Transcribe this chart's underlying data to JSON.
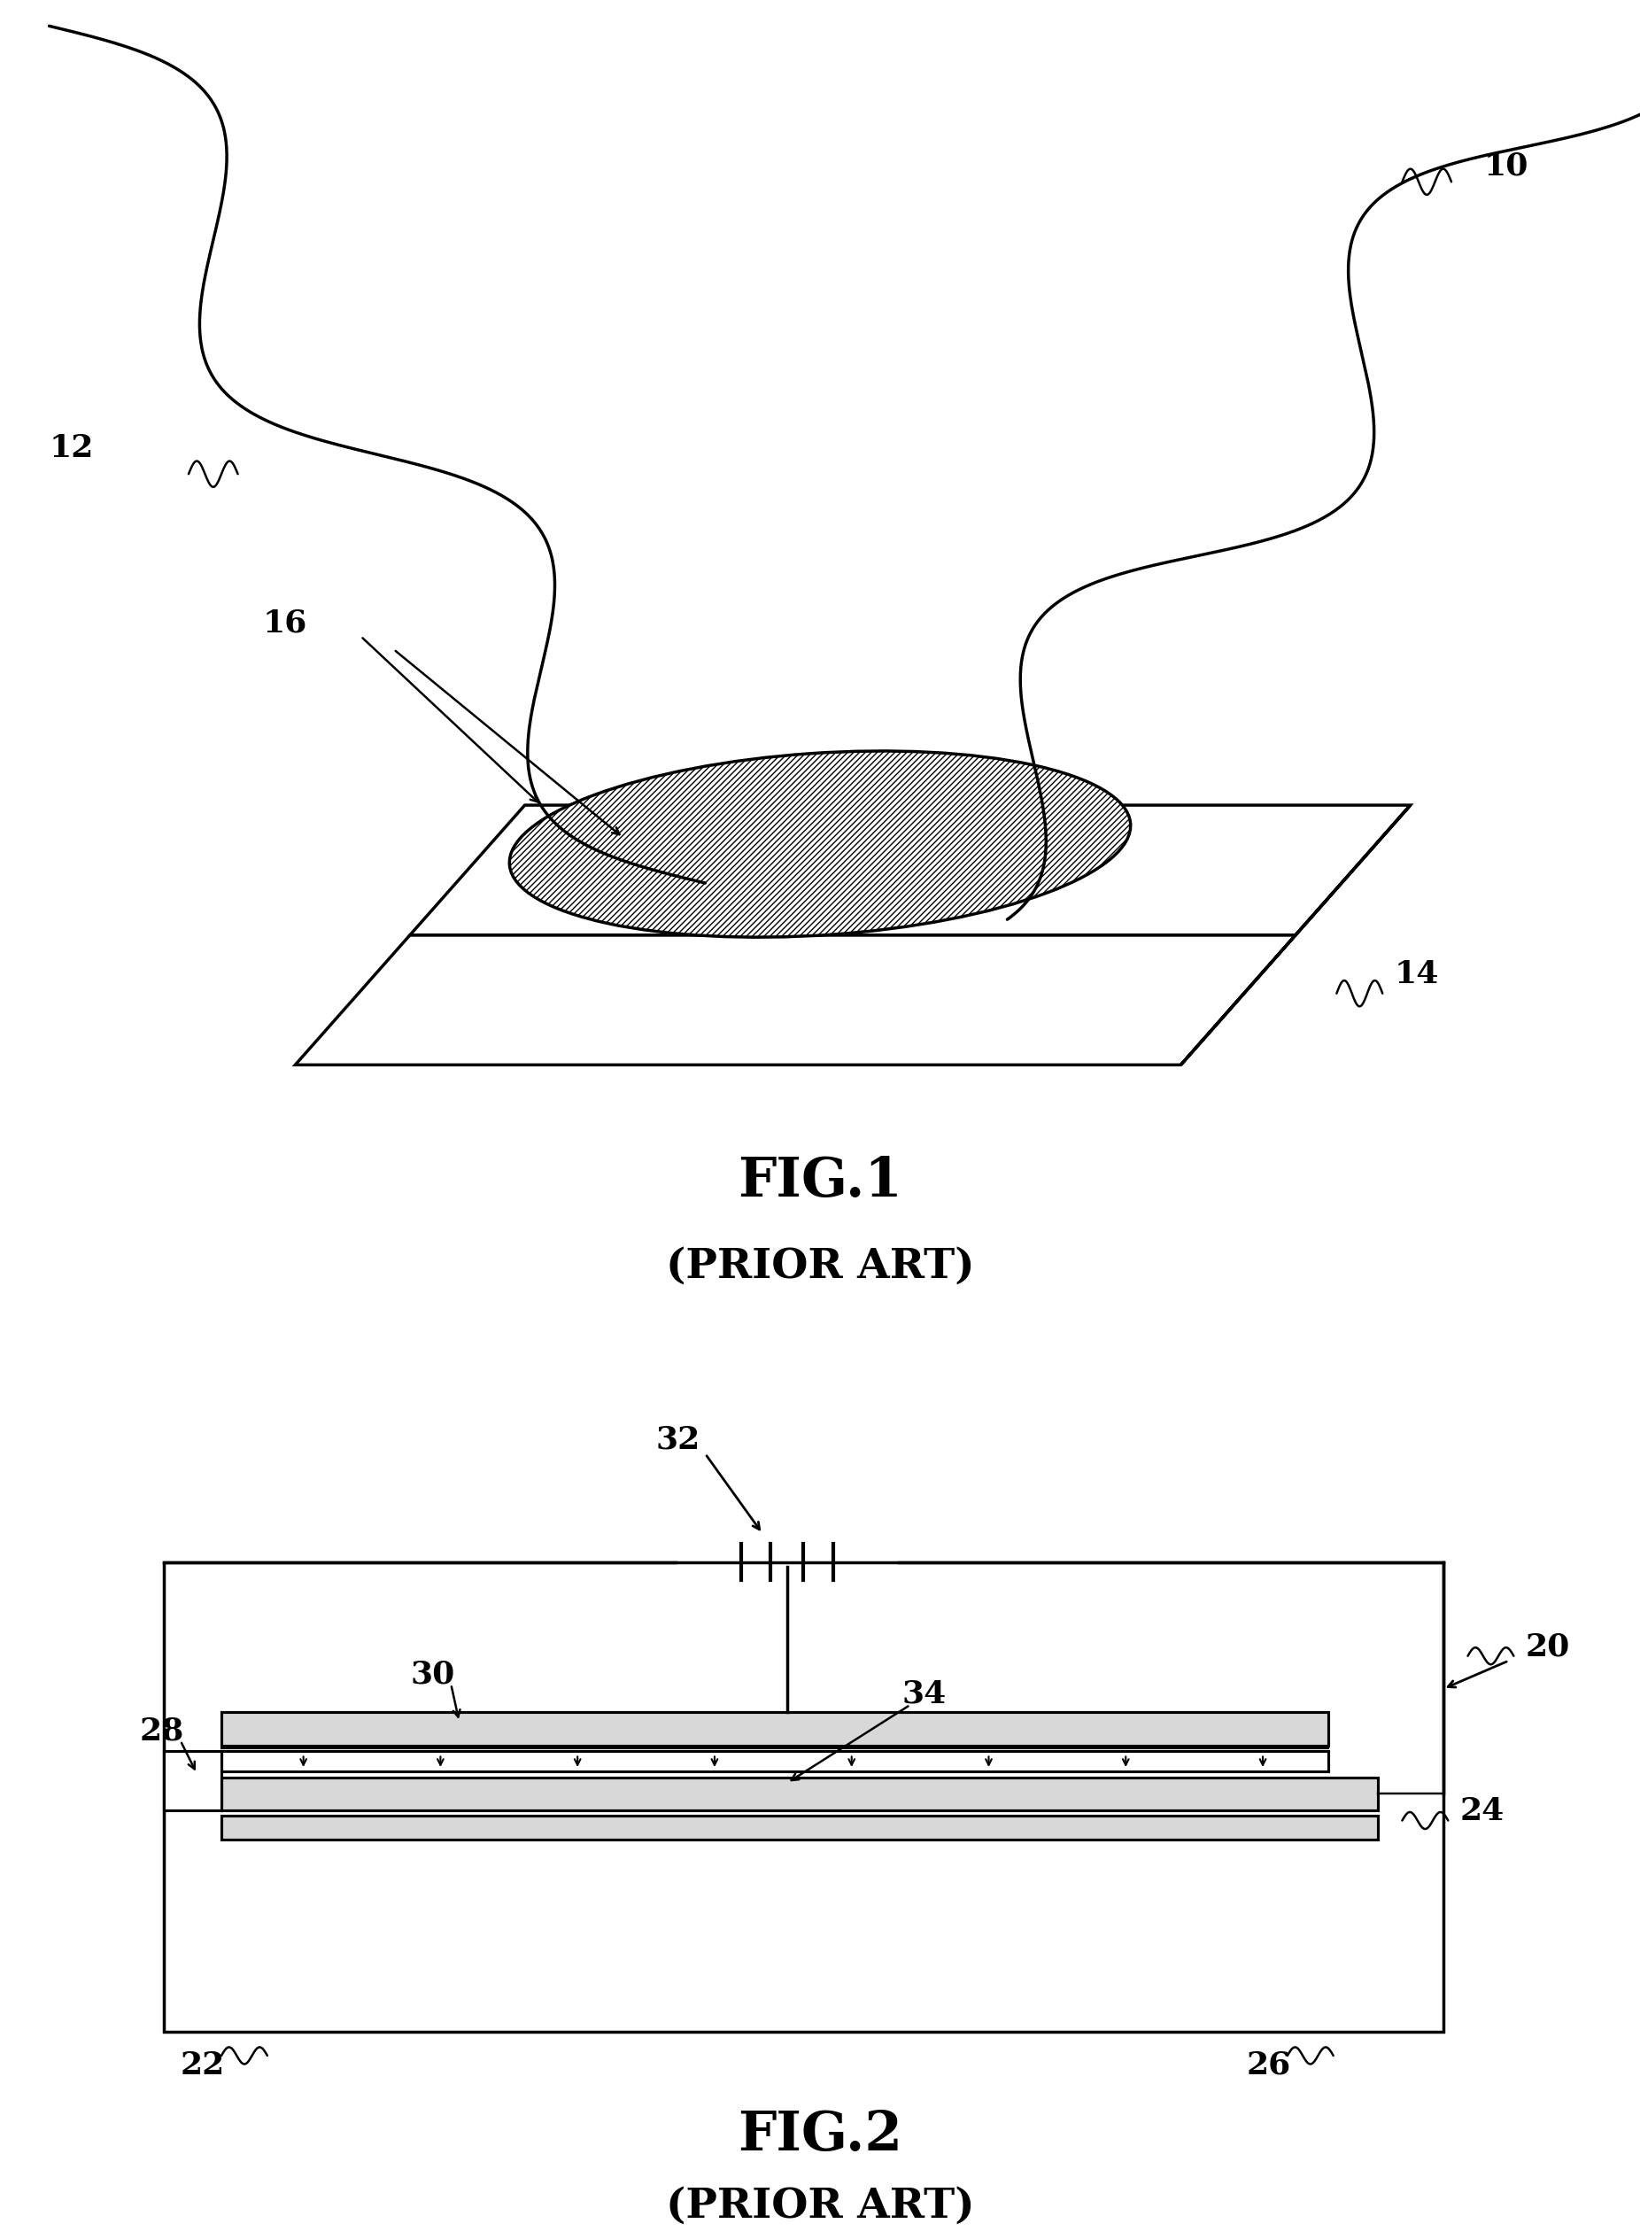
{
  "fig1_title": "FIG.1",
  "fig1_subtitle": "(PRIOR ART)",
  "fig2_title": "FIG.2",
  "fig2_subtitle": "(PRIOR ART)",
  "background_color": "#ffffff",
  "line_color": "#000000",
  "fig_width": 18.52,
  "fig_height": 25.28
}
